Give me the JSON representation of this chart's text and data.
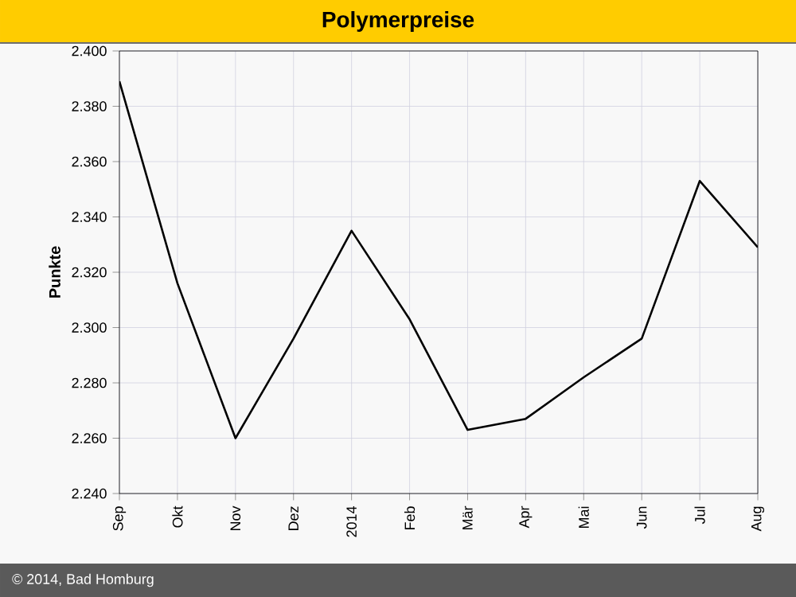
{
  "chart_data": {
    "type": "line",
    "title": "Polymerpreise",
    "ylabel": "Punkte",
    "categories": [
      "Sep",
      "Okt",
      "Nov",
      "Dez",
      "2014",
      "Feb",
      "Mär",
      "Apr",
      "Mai",
      "Jun",
      "Jul",
      "Aug"
    ],
    "series": [
      {
        "color": "#000000",
        "values": [
          2389,
          2316,
          2260,
          2296,
          2335,
          2303,
          2263,
          2267,
          2282,
          2296,
          2353,
          2329
        ]
      }
    ],
    "ylim": [
      2240,
      2400
    ],
    "yticks": [
      {
        "value": 2240,
        "label": "2.240"
      },
      {
        "value": 2260,
        "label": "2.260"
      },
      {
        "value": 2280,
        "label": "2.280"
      },
      {
        "value": 2300,
        "label": "2.300"
      },
      {
        "value": 2320,
        "label": "2.320"
      },
      {
        "value": 2340,
        "label": "2.340"
      },
      {
        "value": 2360,
        "label": "2.360"
      },
      {
        "value": 2380,
        "label": "2.380"
      },
      {
        "value": 2400,
        "label": "2.400"
      }
    ],
    "grid": true,
    "marker": "none",
    "line_style": "solid",
    "annotations": [
      "© 2014, Bad Homburg"
    ]
  }
}
